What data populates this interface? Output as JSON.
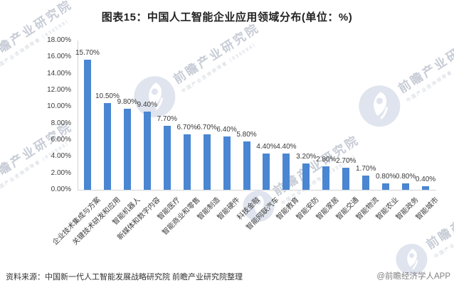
{
  "title": "图表15：中国人工智能企业应用领域分布(单位：%)",
  "watermark": {
    "brand": "前瞻产业研究院",
    "tagline": "中国产业咨询领导者（839599）",
    "logo_icon": "qianzhan-eye-logo-icon",
    "text_color": "#c7ccd6",
    "circle_color": "#dfe4ee"
  },
  "footer": {
    "source": "资料来源：中国新一代人工智能发展战略研究院 前瞻产业研究院整理",
    "credit": "@前瞻经济学人APP"
  },
  "chart_data": {
    "type": "bar",
    "title": "图表15：中国人工智能企业应用领域分布(单位：%)",
    "unit": "%",
    "categories": [
      "企业技术集成与方案",
      "关键技术研发和应用",
      "智能机器人",
      "新媒体和数字内容",
      "智能医疗",
      "智能商业和零售",
      "智能制造",
      "智能硬件",
      "科技金融",
      "智能网联汽车",
      "智能教育",
      "智能安防",
      "智能家居",
      "智能交通",
      "智能物流",
      "智能农业",
      "智能政务",
      "智能城市"
    ],
    "values": [
      15.7,
      10.5,
      9.8,
      9.4,
      7.7,
      6.7,
      6.7,
      6.4,
      5.8,
      4.4,
      4.4,
      3.2,
      2.8,
      2.7,
      1.7,
      0.8,
      0.8,
      0.4
    ],
    "value_label_format": "0.00%",
    "xlabel": "",
    "ylabel": "",
    "ylim": [
      0,
      18
    ],
    "ytick_step": 2,
    "ytick_format": "0.00%",
    "grid": false,
    "legend": false,
    "bar_color": "#4a86d2",
    "value_labels": true,
    "category_label_rotation": -45
  }
}
